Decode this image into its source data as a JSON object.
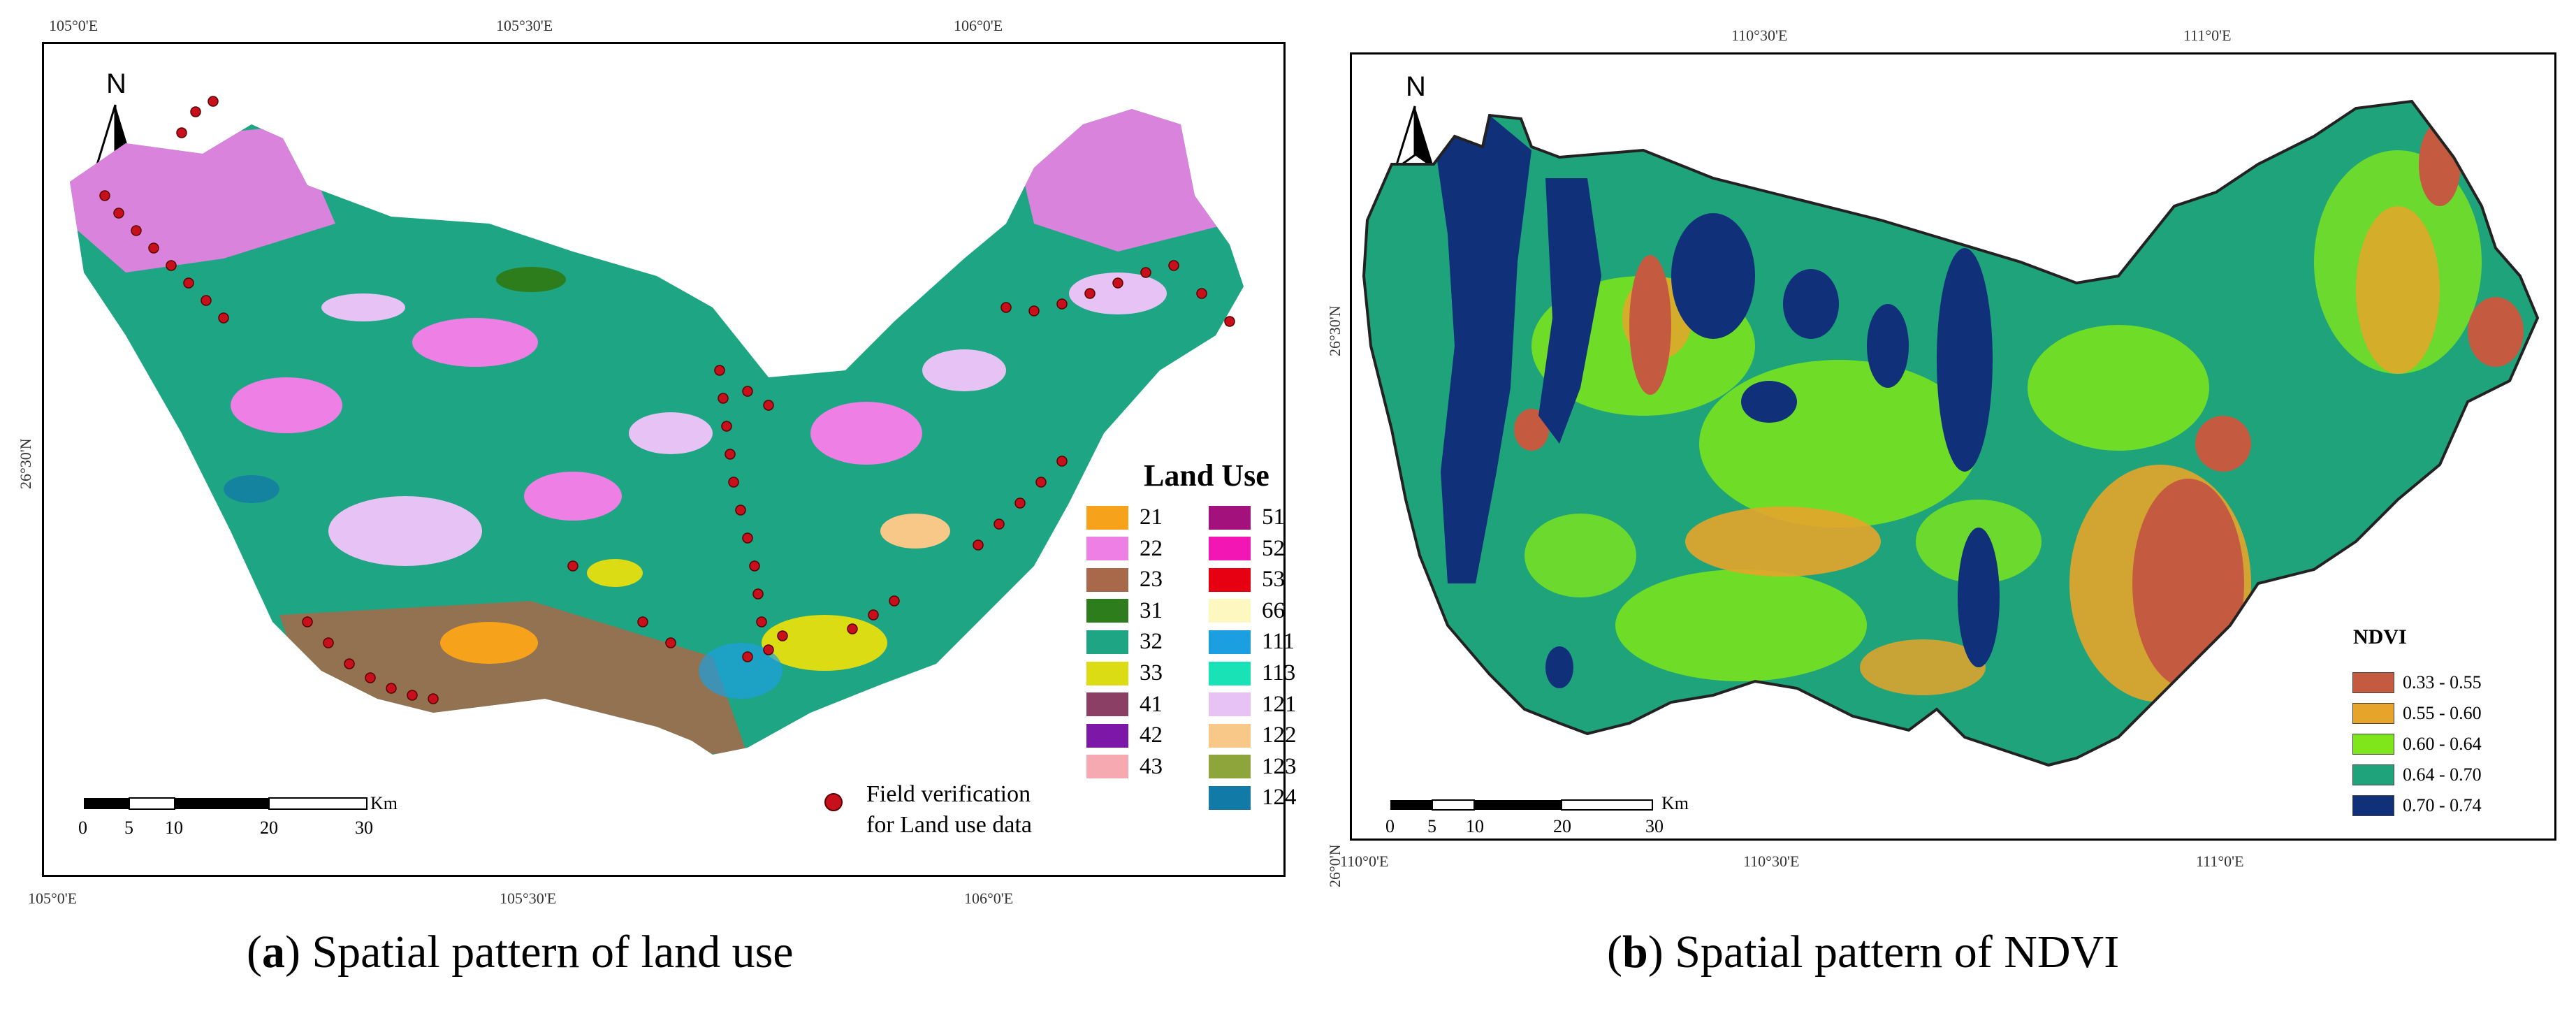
{
  "panel_a": {
    "caption_letter": "a",
    "caption_text": "Spatial pattern of land use",
    "top_ticks": [
      "105°0'E",
      "105°30'E",
      "106°0'E"
    ],
    "bottom_ticks": [
      "105°0'E",
      "105°30'E",
      "106°0'E"
    ],
    "left_tick": "26°30'N",
    "north_label": "N",
    "legend_title": "Land Use",
    "legend_items": [
      {
        "code": "21",
        "color": "#f7a21b"
      },
      {
        "code": "51",
        "color": "#a3117d"
      },
      {
        "code": "22",
        "color": "#ee7fe5"
      },
      {
        "code": "52",
        "color": "#f216b4"
      },
      {
        "code": "23",
        "color": "#a8684a"
      },
      {
        "code": "53",
        "color": "#e60011"
      },
      {
        "code": "31",
        "color": "#2d7d1c"
      },
      {
        "code": "66",
        "color": "#fcf8c0"
      },
      {
        "code": "32",
        "color": "#1ea583"
      },
      {
        "code": "111",
        "color": "#1c9fe0"
      },
      {
        "code": "33",
        "color": "#dcdc14"
      },
      {
        "code": "113",
        "color": "#19e3b6"
      },
      {
        "code": "41",
        "color": "#8c3f64"
      },
      {
        "code": "121",
        "color": "#e6c2f5"
      },
      {
        "code": "42",
        "color": "#7d17a8"
      },
      {
        "code": "122",
        "color": "#f7c887"
      },
      {
        "code": "43",
        "color": "#f7a9b2"
      },
      {
        "code": "123",
        "color": "#8da53a"
      },
      {
        "code": "124",
        "color": "#127aa6"
      }
    ],
    "field_label_line1": "Field verification",
    "field_label_line2": "for Land use data",
    "scale_labels": [
      "0",
      "5",
      "10",
      "20",
      "30"
    ],
    "scale_unit": "Km"
  },
  "panel_b": {
    "caption_letter": "b",
    "caption_text": "Spatial pattern of NDVI",
    "top_ticks": [
      "110°30'E",
      "111°0'E"
    ],
    "bottom_ticks": [
      "110°0'E",
      "110°30'E",
      "111°0'E"
    ],
    "left_ticks": [
      "26°30'N",
      "26°0'N"
    ],
    "north_label": "N",
    "legend_title": "NDVI",
    "legend_items": [
      {
        "range": "0.33 - 0.55",
        "color": "#c45a3f"
      },
      {
        "range": "0.55 - 0.60",
        "color": "#e6a52a"
      },
      {
        "range": "0.60 - 0.64",
        "color": "#7ee61a"
      },
      {
        "range": "0.64 - 0.70",
        "color": "#1fa37a"
      },
      {
        "range": "0.70 - 0.74",
        "color": "#10307a"
      }
    ],
    "scale_labels": [
      "0",
      "5",
      "10",
      "20",
      "30"
    ],
    "scale_unit": "Km"
  }
}
